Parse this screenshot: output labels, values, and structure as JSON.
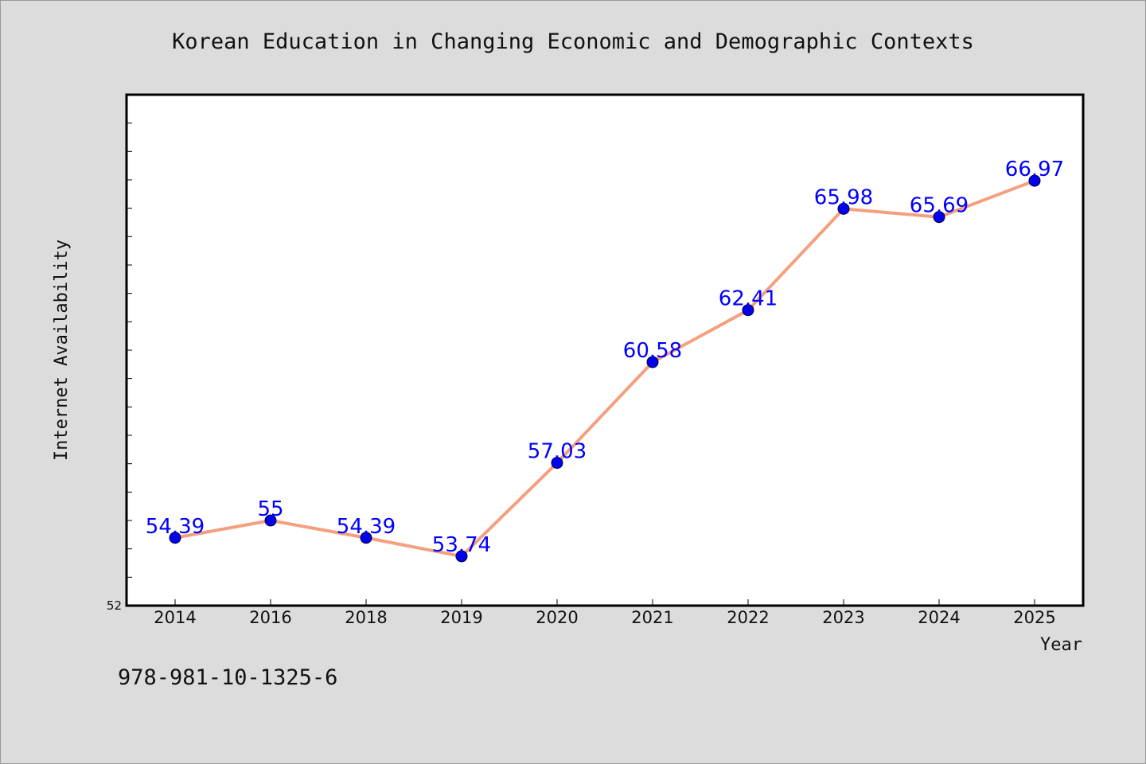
{
  "chart_data": {
    "type": "line",
    "title": "Korean Education in Changing Economic and Demographic Contexts",
    "xlabel": "Year",
    "ylabel": "Internet Availability",
    "categories": [
      "2014",
      "2016",
      "2018",
      "2019",
      "2020",
      "2021",
      "2022",
      "2023",
      "2024",
      "2025"
    ],
    "series": [
      {
        "values": [
          54.39,
          55,
          54.39,
          53.74,
          57.03,
          60.58,
          62.41,
          65.98,
          65.69,
          66.97
        ],
        "data_labels": [
          "54.39",
          "55",
          "54.39",
          "53.74",
          "57.03",
          "60.58",
          "62.41",
          "65.98",
          "65.69",
          "66.97"
        ]
      }
    ],
    "ylim": [
      52,
      70
    ],
    "y_tick_labels": [
      "52"
    ],
    "grid": false,
    "line_color": "#f4a07f",
    "marker_color": "#0000ee",
    "label_color": "#0000ff"
  },
  "footer_text": "978-981-10-1325-6"
}
